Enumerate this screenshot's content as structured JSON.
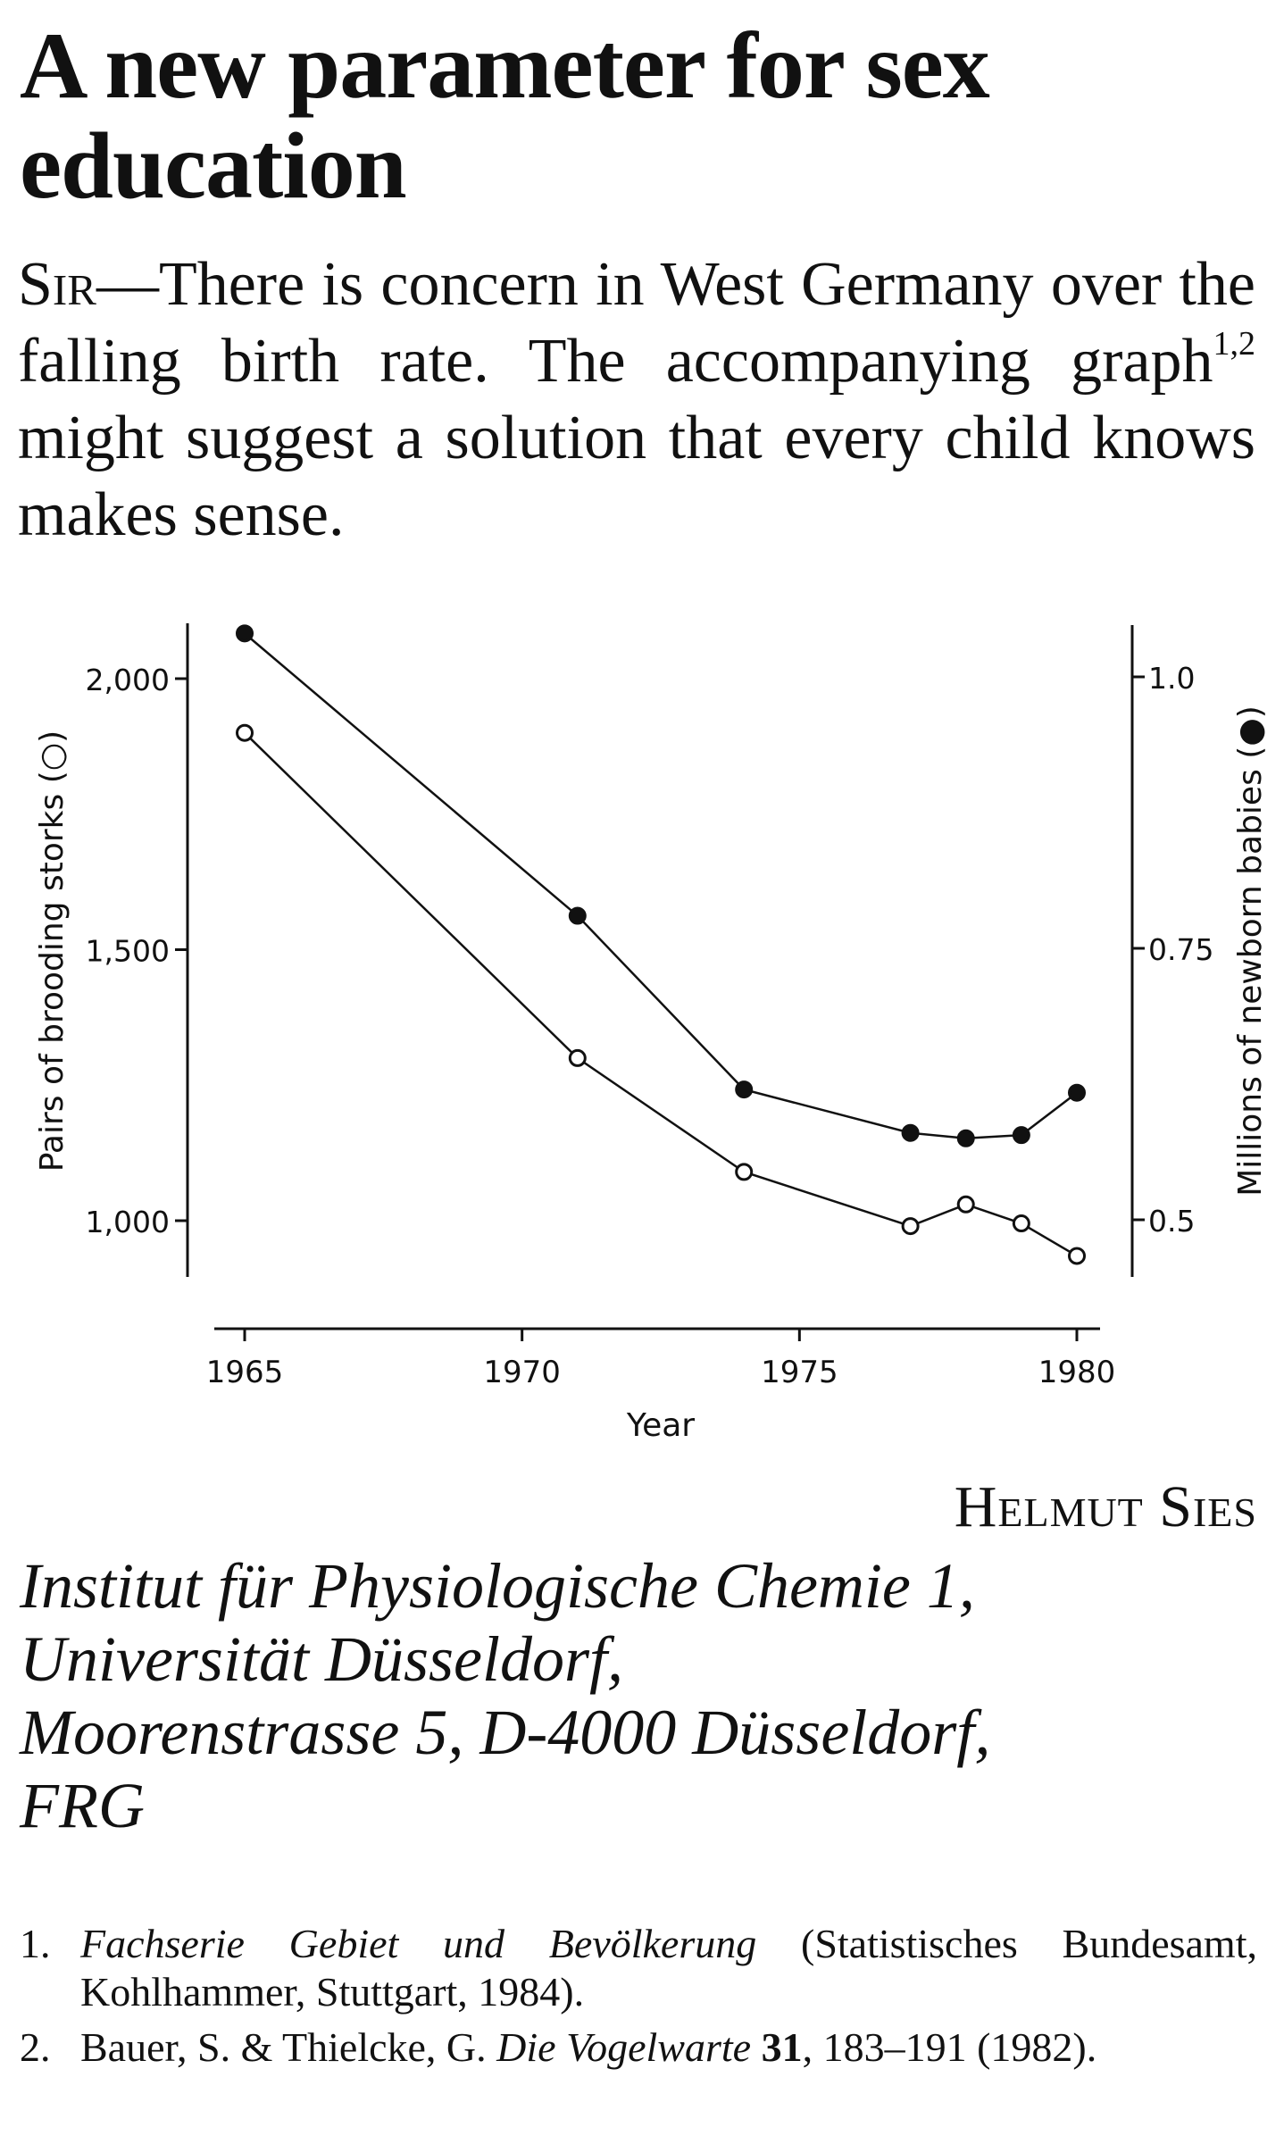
{
  "title": "A new parameter for sex education",
  "intro": {
    "salutation": "Sir",
    "text_before": "—There is concern in West Germany over the falling birth rate. The accompanying graph",
    "superscript": "1,2",
    "text_after": " might suggest a solution that every child knows makes sense."
  },
  "chart_data": {
    "type": "line",
    "xlabel": "Year",
    "x_ticks": [
      1965,
      1970,
      1975,
      1980
    ],
    "xlim": [
      1965,
      1980
    ],
    "y_left": {
      "label": "Pairs of brooding storks (○)",
      "ticks": [
        1000,
        1500,
        2000
      ],
      "tick_labels": [
        "1,000",
        "1,500",
        "2,000"
      ],
      "lim": [
        900,
        2100
      ]
    },
    "y_right": {
      "label": "Millions of newborn babies (●)",
      "ticks": [
        0.5,
        0.75,
        1.0
      ],
      "tick_labels": [
        "0.5",
        "0.75",
        "1.0"
      ],
      "lim": [
        0.45,
        1.05
      ]
    },
    "grid": false,
    "series": [
      {
        "name": "Pairs of brooding storks",
        "axis": "left",
        "marker": "open-circle",
        "x": [
          1965,
          1971,
          1974,
          1977,
          1978,
          1979,
          1980
        ],
        "y": [
          1900,
          1300,
          1090,
          990,
          1030,
          995,
          935
        ]
      },
      {
        "name": "Millions of newborn babies",
        "axis": "right",
        "marker": "filled-circle",
        "x": [
          1965,
          1971,
          1974,
          1977,
          1978,
          1979,
          1980
        ],
        "y": [
          1.04,
          0.78,
          0.62,
          0.58,
          0.575,
          0.578,
          0.617
        ]
      }
    ]
  },
  "author": "Helmut Sies",
  "affiliation": [
    "Institut für Physiologische Chemie 1,",
    "Universität Düsseldorf,",
    "Moorenstrasse 5, D-4000 Düsseldorf,",
    "FRG"
  ],
  "references": [
    {
      "num": "1.",
      "italic": "Fachserie Gebiet und Bevölkerung",
      "rest": " (Statistisches Bundesamt, Kohlhammer, Stuttgart, 1984)."
    },
    {
      "num": "2.",
      "authors": "Bauer, S. & Thielcke, G. ",
      "journal": "Die Vogelwarte",
      "volume": "31",
      "pages": ", 183–191 (1982)."
    }
  ]
}
